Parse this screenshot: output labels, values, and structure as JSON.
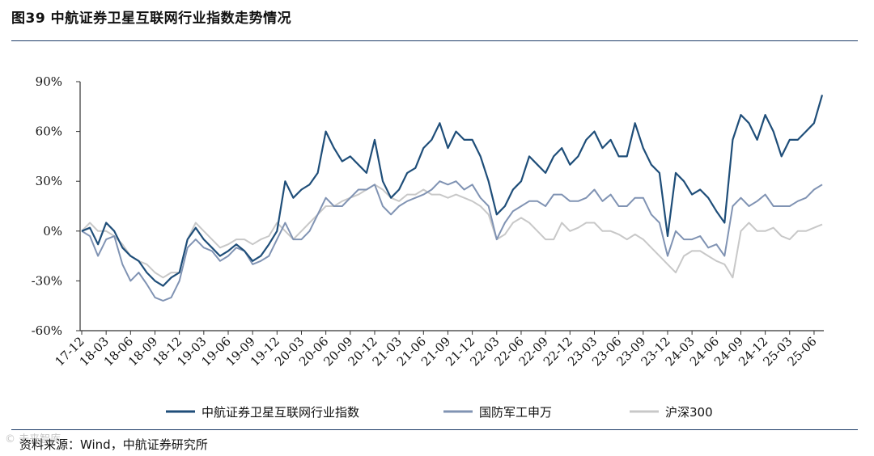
{
  "title": "图39  中航证券卫星互联网行业指数走势情况",
  "source": "资料来源：Wind，中航证券研究所",
  "watermark": "© 未来智库",
  "colors": {
    "series1": "#1f4e79",
    "series2": "#8093b3",
    "series3": "#c8c8c8",
    "axis": "#333333",
    "rule": "#1f3d68"
  },
  "chart_data": {
    "type": "line",
    "title": "中航证券卫星互联网行业指数走势情况",
    "xlabel": "",
    "ylabel": "",
    "ylim": [
      -60,
      90
    ],
    "yticks": [
      -60,
      -30,
      0,
      30,
      60,
      90
    ],
    "ytick_labels": [
      "-60%",
      "-30%",
      "0%",
      "30%",
      "60%",
      "90%"
    ],
    "grid": false,
    "legend_position": "bottom",
    "x": [
      "17-12",
      "18-01",
      "18-02",
      "18-03",
      "18-04",
      "18-05",
      "18-06",
      "18-07",
      "18-08",
      "18-09",
      "18-10",
      "18-11",
      "18-12",
      "19-01",
      "19-02",
      "19-03",
      "19-04",
      "19-05",
      "19-06",
      "19-07",
      "19-08",
      "19-09",
      "19-10",
      "19-11",
      "19-12",
      "20-01",
      "20-02",
      "20-03",
      "20-04",
      "20-05",
      "20-06",
      "20-07",
      "20-08",
      "20-09",
      "20-10",
      "20-11",
      "20-12",
      "21-01",
      "21-02",
      "21-03",
      "21-04",
      "21-05",
      "21-06",
      "21-07",
      "21-08",
      "21-09",
      "21-10",
      "21-11",
      "21-12",
      "22-01",
      "22-02",
      "22-03",
      "22-04",
      "22-05",
      "22-06",
      "22-07",
      "22-08",
      "22-09",
      "22-10",
      "22-11",
      "22-12",
      "23-01",
      "23-02",
      "23-03",
      "23-04",
      "23-05",
      "23-06",
      "23-07",
      "23-08",
      "23-09",
      "23-10",
      "23-11",
      "23-12",
      "24-01",
      "24-02",
      "24-03",
      "24-04",
      "24-05",
      "24-06",
      "24-07",
      "24-08",
      "24-09",
      "24-10",
      "24-11",
      "24-12",
      "25-01",
      "25-02",
      "25-03",
      "25-04",
      "25-05",
      "25-06",
      "25-07"
    ],
    "xtick_labels": [
      "17-12",
      "18-03",
      "18-06",
      "18-09",
      "18-12",
      "19-03",
      "19-06",
      "19-09",
      "19-12",
      "20-03",
      "20-06",
      "20-09",
      "20-12",
      "21-03",
      "21-06",
      "21-09",
      "21-12",
      "22-03",
      "22-06",
      "22-09",
      "22-12",
      "23-03",
      "23-06",
      "23-09",
      "23-12",
      "24-03",
      "24-06",
      "24-09",
      "24-12",
      "25-03",
      "25-06"
    ],
    "series": [
      {
        "name": "中航证券卫星互联网行业指数",
        "color": "#1f4e79",
        "values": [
          0,
          2,
          -8,
          5,
          0,
          -10,
          -15,
          -18,
          -25,
          -30,
          -33,
          -28,
          -25,
          -5,
          2,
          -5,
          -10,
          -15,
          -12,
          -8,
          -12,
          -18,
          -15,
          -8,
          0,
          30,
          20,
          25,
          28,
          35,
          60,
          50,
          42,
          45,
          40,
          35,
          55,
          30,
          20,
          25,
          35,
          38,
          50,
          55,
          65,
          50,
          60,
          55,
          55,
          45,
          30,
          10,
          15,
          25,
          30,
          45,
          40,
          35,
          45,
          50,
          40,
          45,
          55,
          60,
          50,
          55,
          45,
          45,
          65,
          50,
          40,
          35,
          -3,
          35,
          30,
          22,
          25,
          20,
          12,
          5,
          55,
          70,
          65,
          55,
          70,
          60,
          45,
          55,
          55,
          60,
          65,
          82
        ]
      },
      {
        "name": "国防军工申万",
        "color": "#8093b3",
        "values": [
          0,
          -3,
          -15,
          -5,
          -3,
          -20,
          -30,
          -25,
          -32,
          -40,
          -42,
          -40,
          -30,
          -10,
          -5,
          -10,
          -12,
          -18,
          -15,
          -10,
          -12,
          -20,
          -18,
          -15,
          -5,
          5,
          -5,
          -5,
          0,
          10,
          20,
          15,
          15,
          20,
          25,
          25,
          28,
          15,
          10,
          15,
          18,
          20,
          22,
          25,
          30,
          28,
          30,
          25,
          28,
          20,
          15,
          -5,
          5,
          12,
          15,
          18,
          18,
          15,
          22,
          22,
          18,
          18,
          20,
          25,
          18,
          22,
          15,
          15,
          20,
          20,
          10,
          5,
          -15,
          0,
          -5,
          -5,
          -3,
          -10,
          -8,
          -15,
          15,
          20,
          15,
          18,
          22,
          15,
          15,
          15,
          18,
          20,
          25,
          28
        ]
      },
      {
        "name": "沪深300",
        "color": "#c8c8c8",
        "values": [
          0,
          5,
          0,
          0,
          -3,
          -8,
          -15,
          -18,
          -20,
          -25,
          -28,
          -25,
          -25,
          -5,
          5,
          0,
          -5,
          -10,
          -8,
          -5,
          -5,
          -8,
          -5,
          -3,
          5,
          0,
          -5,
          0,
          5,
          10,
          15,
          15,
          18,
          20,
          22,
          25,
          28,
          25,
          20,
          18,
          22,
          22,
          25,
          22,
          22,
          20,
          22,
          20,
          18,
          15,
          10,
          -5,
          -2,
          5,
          8,
          5,
          0,
          -5,
          -5,
          5,
          0,
          2,
          5,
          5,
          0,
          0,
          -2,
          -5,
          -2,
          -5,
          -10,
          -15,
          -20,
          -25,
          -15,
          -12,
          -12,
          -15,
          -18,
          -20,
          -28,
          0,
          5,
          0,
          0,
          2,
          -3,
          -5,
          0,
          0,
          2,
          4
        ]
      }
    ]
  }
}
